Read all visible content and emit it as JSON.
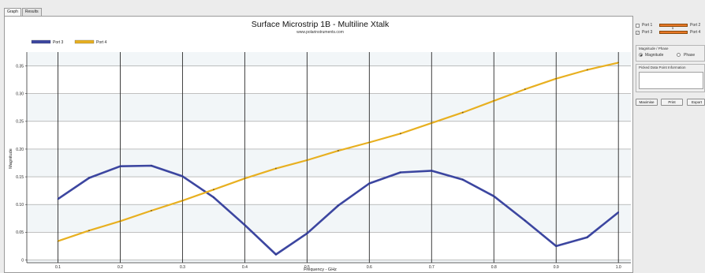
{
  "tabs": [
    {
      "label": "Graph",
      "active": true
    },
    {
      "label": "Results",
      "active": false
    }
  ],
  "chart_data": {
    "type": "line",
    "title": "Surface Microstrip 1B - Multiline Xtalk",
    "subtitle": "www.polarinstruments.com",
    "xlabel": "Frequency - GHz",
    "ylabel": "Magnitude",
    "xlim": [
      0.05,
      1.02
    ],
    "ylim": [
      -0.005,
      0.375
    ],
    "x_ticks": [
      "0.1",
      "0.2",
      "0.3",
      "0.4",
      "0.5",
      "0.6",
      "0.7",
      "0.8",
      "0.9",
      "1.0"
    ],
    "y_ticks": [
      "0",
      "0.05",
      "0.10",
      "0.15",
      "0.20",
      "0.25",
      "0.30",
      "0.35"
    ],
    "grid": true,
    "legend_position": "top-left",
    "series": [
      {
        "name": "Port 3",
        "color": "#3c46a0",
        "x": [
          0.1,
          0.15,
          0.2,
          0.25,
          0.3,
          0.35,
          0.4,
          0.45,
          0.5,
          0.55,
          0.6,
          0.65,
          0.7,
          0.75,
          0.8,
          0.85,
          0.9,
          0.95,
          1.0
        ],
        "values": [
          0.11,
          0.148,
          0.169,
          0.17,
          0.151,
          0.113,
          0.063,
          0.01,
          0.048,
          0.098,
          0.138,
          0.158,
          0.161,
          0.145,
          0.115,
          0.071,
          0.025,
          0.041,
          0.086
        ]
      },
      {
        "name": "Port 4",
        "color": "#e8b020",
        "x": [
          0.1,
          0.15,
          0.2,
          0.25,
          0.3,
          0.35,
          0.4,
          0.45,
          0.5,
          0.55,
          0.6,
          0.65,
          0.7,
          0.75,
          0.8,
          0.85,
          0.9,
          0.95,
          1.0
        ],
        "values": [
          0.034,
          0.053,
          0.07,
          0.089,
          0.107,
          0.127,
          0.147,
          0.165,
          0.18,
          0.197,
          0.212,
          0.228,
          0.247,
          0.266,
          0.287,
          0.308,
          0.327,
          0.343,
          0.356
        ]
      }
    ]
  },
  "side": {
    "ports": [
      {
        "label": "Port 1",
        "checked": false,
        "color": "#e87828"
      },
      {
        "label": "Port 2",
        "checked": false,
        "color": "#e87828"
      },
      {
        "label": "Port 3",
        "checked": true,
        "color": "#e87828"
      },
      {
        "label": "Port 4",
        "checked": false,
        "color": "#e87828"
      }
    ],
    "check_mark": "✓",
    "mid_marker": "5",
    "magnitude_group": {
      "title": "Magnitude / Phase",
      "option_magnitude": "Magnitude",
      "option_phase": "Phase",
      "selected": "Magnitude"
    },
    "picked_group": {
      "title": "Picked Data Point Information"
    },
    "buttons": {
      "maximise": "Maximise",
      "print": "Print",
      "export": "Export"
    }
  }
}
